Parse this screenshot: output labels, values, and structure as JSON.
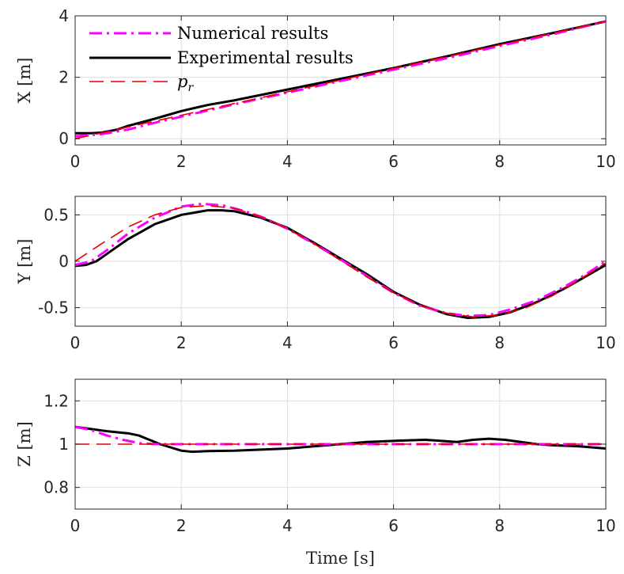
{
  "chart_data": [
    {
      "type": "line",
      "ylabel": "X [m]",
      "xlabel": "",
      "xlim": [
        0,
        10
      ],
      "ylim": [
        -0.2,
        4
      ],
      "xticks": [
        "0",
        "2",
        "4",
        "6",
        "8",
        "10"
      ],
      "xtick_values": [
        0,
        2,
        4,
        6,
        8,
        10
      ],
      "yticks": [
        "0",
        "2",
        "4"
      ],
      "ytick_values": [
        0,
        2,
        4
      ],
      "grid": true,
      "legend": {
        "position": "top-left",
        "entries": [
          {
            "label": "Numerical results",
            "color": "#ff00ff",
            "style": "dashdot"
          },
          {
            "label": "Experimental results",
            "color": "#000000",
            "style": "solid"
          },
          {
            "label": "p",
            "sub": "r",
            "color": "#e60000",
            "style": "dashed"
          }
        ]
      },
      "series": [
        {
          "name": "Experimental results",
          "color": "#000000",
          "style": "solid",
          "x": [
            0,
            0.3,
            0.5,
            0.8,
            1,
            1.5,
            2,
            2.5,
            3,
            4,
            5,
            6,
            7,
            8,
            9,
            10
          ],
          "y": [
            0.18,
            0.18,
            0.2,
            0.3,
            0.42,
            0.65,
            0.9,
            1.1,
            1.25,
            1.6,
            1.95,
            2.3,
            2.68,
            3.08,
            3.44,
            3.82
          ]
        },
        {
          "name": "Numerical results",
          "color": "#ff00ff",
          "style": "dashdot",
          "x": [
            0,
            0.5,
            1,
            1.5,
            2,
            3,
            4,
            5,
            6,
            7,
            8,
            9,
            10
          ],
          "y": [
            0.08,
            0.15,
            0.3,
            0.52,
            0.72,
            1.12,
            1.5,
            1.88,
            2.25,
            2.62,
            3.02,
            3.4,
            3.82
          ]
        },
        {
          "name": "p_r",
          "color": "#e60000",
          "style": "dashed",
          "x": [
            0,
            10
          ],
          "y": [
            0,
            3.82
          ]
        }
      ]
    },
    {
      "type": "line",
      "ylabel": "Y [m]",
      "xlabel": "",
      "xlim": [
        0,
        10
      ],
      "ylim": [
        -0.7,
        0.7
      ],
      "xticks": [
        "0",
        "2",
        "4",
        "6",
        "8",
        "10"
      ],
      "xtick_values": [
        0,
        2,
        4,
        6,
        8,
        10
      ],
      "yticks": [
        "0.5",
        "0",
        "-0.5"
      ],
      "ytick_values": [
        0.5,
        0,
        -0.5
      ],
      "grid": true,
      "series": [
        {
          "name": "Experimental results",
          "color": "#000000",
          "style": "solid",
          "x": [
            0,
            0.2,
            0.4,
            0.7,
            1,
            1.5,
            2,
            2.5,
            2.75,
            3,
            3.5,
            4,
            4.5,
            5,
            5.5,
            6,
            6.5,
            7,
            7.4,
            7.8,
            8.2,
            8.7,
            9.2,
            9.6,
            10
          ],
          "y": [
            -0.05,
            -0.04,
            0,
            0.12,
            0.24,
            0.4,
            0.5,
            0.55,
            0.55,
            0.54,
            0.47,
            0.36,
            0.2,
            0.03,
            -0.14,
            -0.33,
            -0.47,
            -0.57,
            -0.61,
            -0.6,
            -0.55,
            -0.44,
            -0.3,
            -0.17,
            -0.04
          ]
        },
        {
          "name": "Numerical results",
          "color": "#ff00ff",
          "style": "dashdot",
          "x": [
            0,
            0.3,
            0.6,
            1,
            1.5,
            2,
            2.4,
            2.8,
            3.2,
            3.6,
            4,
            4.5,
            5,
            5.5,
            6,
            6.5,
            7,
            7.4,
            7.8,
            8.2,
            8.7,
            9.2,
            9.6,
            10
          ],
          "y": [
            -0.04,
            0,
            0.12,
            0.3,
            0.47,
            0.59,
            0.62,
            0.6,
            0.54,
            0.46,
            0.35,
            0.19,
            0.02,
            -0.16,
            -0.34,
            -0.48,
            -0.56,
            -0.59,
            -0.58,
            -0.52,
            -0.42,
            -0.28,
            -0.15,
            0
          ]
        },
        {
          "name": "p_r",
          "color": "#e60000",
          "style": "dashed",
          "x": [
            0,
            0.5,
            1,
            1.5,
            2,
            2.5,
            3,
            3.5,
            4,
            4.5,
            5,
            5.5,
            6,
            6.5,
            7,
            7.5,
            8,
            8.5,
            9,
            9.5,
            10
          ],
          "y": [
            0,
            0.19,
            0.37,
            0.5,
            0.58,
            0.6,
            0.57,
            0.48,
            0.35,
            0.19,
            0.01,
            -0.17,
            -0.34,
            -0.47,
            -0.56,
            -0.6,
            -0.58,
            -0.5,
            -0.37,
            -0.2,
            -0.02
          ]
        }
      ]
    },
    {
      "type": "line",
      "ylabel": "Z [m]",
      "xlabel": "Time [s]",
      "xlim": [
        0,
        10
      ],
      "ylim": [
        0.7,
        1.3
      ],
      "xticks": [
        "0",
        "2",
        "4",
        "6",
        "8",
        "10"
      ],
      "xtick_values": [
        0,
        2,
        4,
        6,
        8,
        10
      ],
      "yticks": [
        "1.2",
        "1",
        "0.8"
      ],
      "ytick_values": [
        1.2,
        1,
        0.8
      ],
      "grid": true,
      "series": [
        {
          "name": "Experimental results",
          "color": "#000000",
          "style": "solid",
          "x": [
            0,
            0.3,
            0.6,
            1,
            1.2,
            1.4,
            1.6,
            1.8,
            2,
            2.2,
            2.5,
            3,
            3.5,
            4,
            4.5,
            5,
            5.5,
            6,
            6.3,
            6.6,
            6.9,
            7.2,
            7.5,
            7.8,
            8.1,
            8.4,
            8.7,
            9,
            9.5,
            10
          ],
          "y": [
            1.08,
            1.07,
            1.06,
            1.05,
            1.04,
            1.02,
            1.0,
            0.985,
            0.97,
            0.965,
            0.968,
            0.97,
            0.975,
            0.98,
            0.99,
            1.0,
            1.01,
            1.015,
            1.018,
            1.02,
            1.015,
            1.01,
            1.02,
            1.025,
            1.02,
            1.01,
            1.0,
            0.995,
            0.99,
            0.98
          ]
        },
        {
          "name": "Numerical results",
          "color": "#ff00ff",
          "style": "dashdot",
          "x": [
            0,
            0.3,
            0.6,
            0.9,
            1.2,
            1.5,
            1.8,
            2.2,
            3,
            4,
            5,
            6,
            7,
            8,
            9,
            10
          ],
          "y": [
            1.08,
            1.065,
            1.04,
            1.02,
            1.005,
            1.0,
            1.0,
            1.0,
            1.0,
            1.0,
            1.0,
            1.0,
            1.0,
            1.0,
            1.0,
            1.0
          ]
        },
        {
          "name": "p_r",
          "color": "#e60000",
          "style": "dashed",
          "x": [
            0,
            10
          ],
          "y": [
            1.0,
            1.0
          ]
        }
      ]
    }
  ]
}
